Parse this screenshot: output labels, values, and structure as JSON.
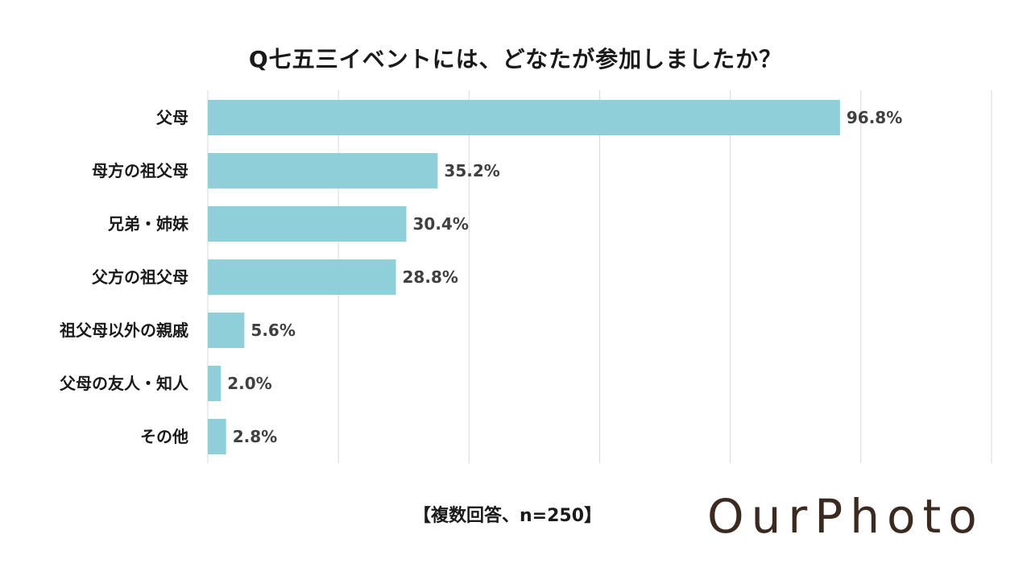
{
  "chart_data": {
    "type": "bar",
    "orientation": "horizontal",
    "title": "Q七五三イベントには、どなたが参加しましたか？",
    "categories": [
      "父母",
      "母方の祖父母",
      "兄弟・姉妹",
      "父方の祖父母",
      "祖父母以外の親戚",
      "父母の友人・知人",
      "その他"
    ],
    "values": [
      96.8,
      35.2,
      30.4,
      28.8,
      5.6,
      2.0,
      2.8
    ],
    "value_labels": [
      "96.8%",
      "35.2%",
      "30.4%",
      "28.8%",
      "5.6%",
      "2.0%",
      "2.8%"
    ],
    "xlim": [
      0,
      120
    ],
    "grid": true,
    "bar_color": "#8ecfd9",
    "gridline_color": "#d9d9d9"
  },
  "footnote": "【複数回答、n=250】",
  "logo_text": "OurPhoto",
  "logo_color": "#3a2a20"
}
